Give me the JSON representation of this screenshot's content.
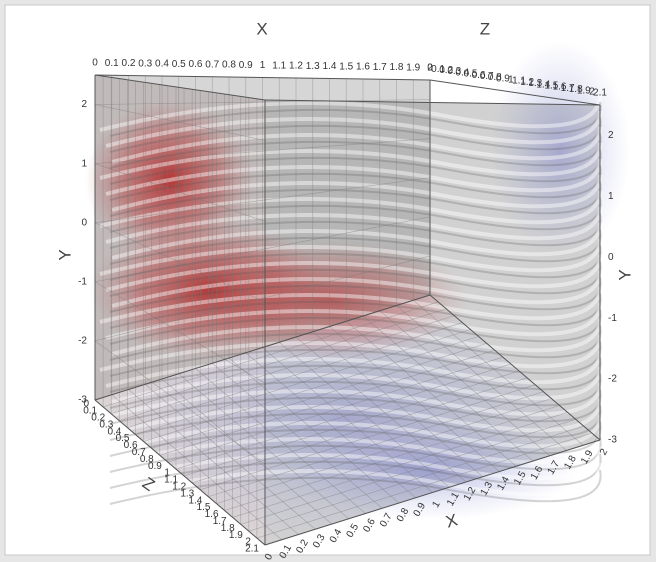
{
  "chart_data": {
    "type": "volume",
    "x_label": "X",
    "y_label": "Y",
    "z_label": "Z",
    "xlim": [
      0,
      2
    ],
    "ylim": [
      -3,
      2.5
    ],
    "zlim": [
      0,
      2.1
    ],
    "xticks": [
      0,
      0.1,
      0.2,
      0.3,
      0.4,
      0.5,
      0.6,
      0.7,
      0.8,
      0.9,
      1,
      1.1,
      1.2,
      1.3,
      1.4,
      1.5,
      1.6,
      1.7,
      1.8,
      1.9,
      2
    ],
    "yticks": [
      -3,
      -2,
      -1,
      0,
      1,
      2
    ],
    "zticks": [
      0,
      0.1,
      0.2,
      0.3,
      0.4,
      0.5,
      0.6,
      0.7,
      0.8,
      0.9,
      1,
      1.1,
      1.2,
      1.3,
      1.4,
      1.5,
      1.6,
      1.7,
      1.8,
      1.9,
      2,
      2.1
    ],
    "grid": true
  }
}
